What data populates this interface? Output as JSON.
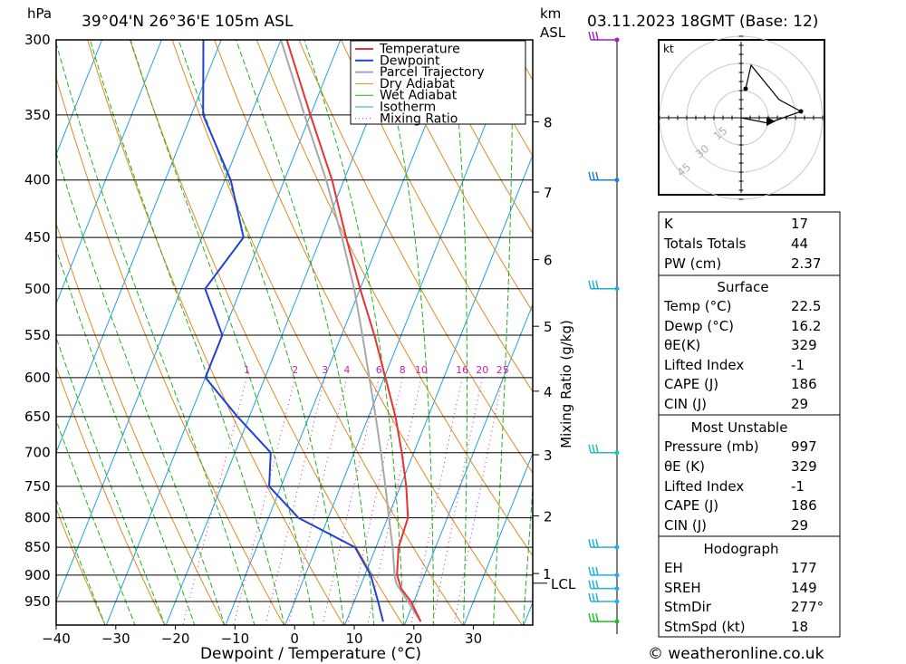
{
  "header": {
    "hpa_label": "hPa",
    "location": "39°04'N 26°36'E 105m ASL",
    "km_label": "km",
    "asl_label": "ASL",
    "datetime": "03.11.2023 18GMT (Base: 12)"
  },
  "chart_data": {
    "type": "skewt",
    "xlabel": "Dewpoint / Temperature (°C)",
    "ylabel": "hPa",
    "mixing_ratio_axis_label": "Mixing Ratio (g/kg)",
    "temperature_ticks": [
      -40,
      -30,
      -20,
      -10,
      0,
      10,
      20,
      30
    ],
    "pressure_ticks": [
      300,
      350,
      400,
      450,
      500,
      550,
      600,
      650,
      700,
      750,
      800,
      850,
      900,
      950
    ],
    "height_ticks_km": [
      1,
      2,
      3,
      4,
      5,
      6,
      7,
      8
    ],
    "lcl_label": "LCL",
    "lcl_pressure": 915,
    "mixing_ratio_values": [
      1,
      2,
      3,
      4,
      6,
      8,
      10,
      16,
      20,
      25
    ],
    "legend": [
      "Temperature",
      "Dewpoint",
      "Parcel Trajectory",
      "Dry Adiabat",
      "Wet Adiabat",
      "Isotherm",
      "Mixing Ratio"
    ],
    "colors": {
      "temperature": "#e83232",
      "dewpoint": "#2040d8",
      "parcel": "#a8a8a8",
      "dry_adiabat": "#e08a20",
      "wet_adiabat": "#20b020",
      "isotherm": "#20a0e0",
      "mixing_ratio": "#d020a0"
    },
    "temperature": [
      {
        "p": 990,
        "t": 22.5
      },
      {
        "p": 950,
        "t": 19.5
      },
      {
        "p": 925,
        "t": 17.0
      },
      {
        "p": 900,
        "t": 15.4
      },
      {
        "p": 850,
        "t": 13.8
      },
      {
        "p": 800,
        "t": 13.4
      },
      {
        "p": 750,
        "t": 11.0
      },
      {
        "p": 700,
        "t": 8.0
      },
      {
        "p": 650,
        "t": 4.5
      },
      {
        "p": 600,
        "t": 0.2
      },
      {
        "p": 550,
        "t": -4.5
      },
      {
        "p": 500,
        "t": -10.0
      },
      {
        "p": 450,
        "t": -15.8
      },
      {
        "p": 400,
        "t": -22.0
      },
      {
        "p": 350,
        "t": -30.0
      },
      {
        "p": 300,
        "t": -39.0
      }
    ],
    "dewpoint": [
      {
        "p": 990,
        "t": 16.2
      },
      {
        "p": 950,
        "t": 14.0
      },
      {
        "p": 900,
        "t": 11.0
      },
      {
        "p": 850,
        "t": 6.5
      },
      {
        "p": 800,
        "t": -5.0
      },
      {
        "p": 750,
        "t": -12.0
      },
      {
        "p": 700,
        "t": -14.0
      },
      {
        "p": 650,
        "t": -22.0
      },
      {
        "p": 600,
        "t": -30.0
      },
      {
        "p": 550,
        "t": -30.0
      },
      {
        "p": 500,
        "t": -36.0
      },
      {
        "p": 450,
        "t": -33.0
      },
      {
        "p": 400,
        "t": -39.0
      },
      {
        "p": 350,
        "t": -48.0
      },
      {
        "p": 300,
        "t": -53.0
      }
    ],
    "parcel": [
      {
        "p": 990,
        "t": 22.5
      },
      {
        "p": 950,
        "t": 19.0
      },
      {
        "p": 915,
        "t": 15.8
      },
      {
        "p": 900,
        "t": 15.0
      },
      {
        "p": 850,
        "t": 12.8
      },
      {
        "p": 800,
        "t": 10.2
      },
      {
        "p": 750,
        "t": 7.5
      },
      {
        "p": 700,
        "t": 4.5
      },
      {
        "p": 650,
        "t": 1.2
      },
      {
        "p": 600,
        "t": -2.5
      },
      {
        "p": 550,
        "t": -6.5
      },
      {
        "p": 500,
        "t": -11.0
      },
      {
        "p": 450,
        "t": -16.5
      },
      {
        "p": 400,
        "t": -23.0
      },
      {
        "p": 350,
        "t": -31.0
      },
      {
        "p": 300,
        "t": -40.0
      }
    ],
    "wind_barbs": [
      {
        "p": 300,
        "color": "#a020c0"
      },
      {
        "p": 400,
        "color": "#2080d0"
      },
      {
        "p": 500,
        "color": "#20b0d0"
      },
      {
        "p": 700,
        "color": "#20c0b0"
      },
      {
        "p": 850,
        "color": "#20b0e0"
      },
      {
        "p": 900,
        "color": "#20b0e0"
      },
      {
        "p": 925,
        "color": "#20b0e0"
      },
      {
        "p": 950,
        "color": "#20b0e0"
      },
      {
        "p": 990,
        "color": "#20c020"
      }
    ]
  },
  "hodograph": {
    "unit_label": "kt",
    "ring_labels": [
      "15",
      "30",
      "45"
    ]
  },
  "indices": {
    "k_label": "K",
    "k_value": "17",
    "tt_label": "Totals Totals",
    "tt_value": "44",
    "pw_label": "PW (cm)",
    "pw_value": "2.37"
  },
  "surface": {
    "title": "Surface",
    "temp_label": "Temp (°C)",
    "temp_value": "22.5",
    "dewp_label": "Dewp (°C)",
    "dewp_value": "16.2",
    "theta_label": "θE(K)",
    "theta_value": "329",
    "li_label": "Lifted Index",
    "li_value": "-1",
    "cape_label": "CAPE (J)",
    "cape_value": "186",
    "cin_label": "CIN (J)",
    "cin_value": "29"
  },
  "most_unstable": {
    "title": "Most Unstable",
    "pressure_label": "Pressure (mb)",
    "pressure_value": "997",
    "theta_label": "θE (K)",
    "theta_value": "329",
    "li_label": "Lifted Index",
    "li_value": "-1",
    "cape_label": "CAPE (J)",
    "cape_value": "186",
    "cin_label": "CIN (J)",
    "cin_value": "29"
  },
  "hodo_stats": {
    "title": "Hodograph",
    "eh_label": "EH",
    "eh_value": "177",
    "sreh_label": "SREH",
    "sreh_value": "149",
    "stmdir_label": "StmDir",
    "stmdir_value": "277°",
    "stmspd_label": "StmSpd (kt)",
    "stmspd_value": "18"
  },
  "footer": {
    "copyright": "© weatheronline.co.uk"
  }
}
